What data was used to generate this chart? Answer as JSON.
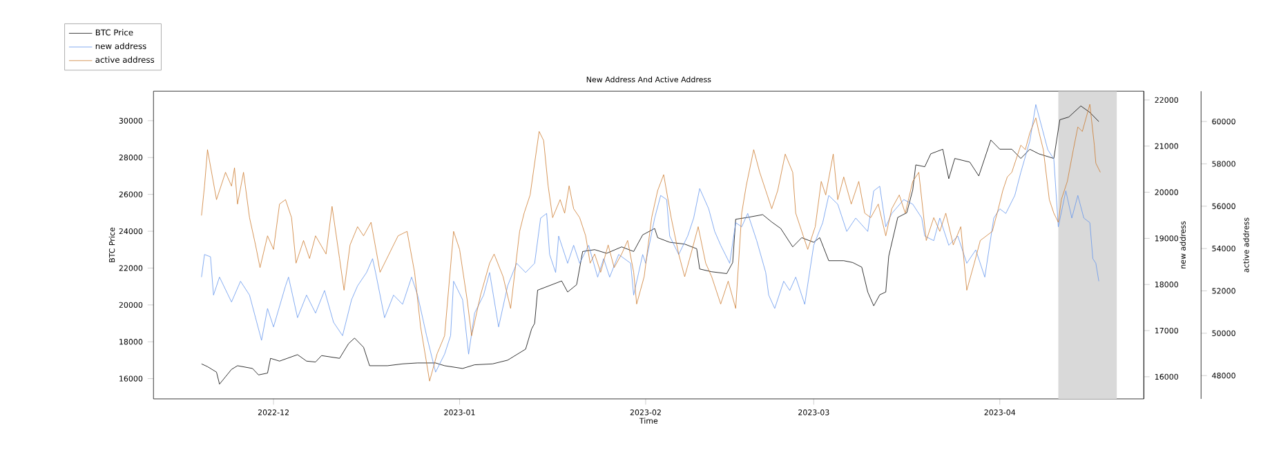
{
  "chart_data": {
    "type": "line",
    "title": "New Address And Active Address",
    "xlabel": "Time",
    "ylabel": "BTC Price",
    "y2label": "new address",
    "y3label": "active address",
    "legend": "top left",
    "xlim": [
      "2022-11-11",
      "2023-04-25"
    ],
    "xticks": [
      {
        "value": "2022-12-01",
        "label": "2022-12"
      },
      {
        "value": "2023-01-01",
        "label": "2023-01"
      },
      {
        "value": "2023-02-01",
        "label": "2023-02"
      },
      {
        "value": "2023-03-01",
        "label": "2023-03"
      },
      {
        "value": "2023-04-01",
        "label": "2023-04"
      }
    ],
    "ylim": [
      14900,
      31600
    ],
    "yticks": [
      16000,
      18000,
      20000,
      22000,
      24000,
      26000,
      28000,
      30000
    ],
    "y2lim": [
      15520,
      22190
    ],
    "y2ticks": [
      16000,
      17000,
      18000,
      19000,
      20000,
      21000,
      22000
    ],
    "y3lim": [
      46900,
      61430
    ],
    "y3ticks": [
      48000,
      50000,
      52000,
      54000,
      56000,
      58000,
      60000
    ],
    "bands": [
      {
        "axis": "x",
        "from": "2023-04-10T18:00",
        "to": "2023-04-20T12:00",
        "color": "#d9d9d9"
      }
    ],
    "series": [
      {
        "name": "BTC Price",
        "color": "#000000",
        "x": [
          "2022-11-19",
          "2022-11-20",
          "2022-11-21T12:00",
          "2022-11-22",
          "2022-11-24",
          "2022-11-25",
          "2022-11-27T12:00",
          "2022-11-28T12:00",
          "2022-11-30",
          "2022-11-30T12:00",
          "2022-12-02",
          "2022-12-05",
          "2022-12-06T12:00",
          "2022-12-08",
          "2022-12-09",
          "2022-12-12",
          "2022-12-13T12:00",
          "2022-12-14T12:00",
          "2022-12-16",
          "2022-12-17",
          "2022-12-20",
          "2022-12-22T12:00",
          "2022-12-25",
          "2022-12-28",
          "2022-12-29T12:00",
          "2023-01-01T12:00",
          "2023-01-03T12:00",
          "2023-01-06T12:00",
          "2023-01-09",
          "2023-01-10T12:00",
          "2023-01-12",
          "2023-01-13",
          "2023-01-13T12:00",
          "2023-01-14",
          "2023-01-18",
          "2023-01-19",
          "2023-01-20T12:00",
          "2023-01-21T12:00",
          "2023-01-23T12:00",
          "2023-01-25T12:00",
          "2023-01-28",
          "2023-01-30",
          "2023-01-31T12:00",
          "2023-02-02T12:00",
          "2023-02-03",
          "2023-02-05",
          "2023-02-07T12:00",
          "2023-02-09T12:00",
          "2023-02-10",
          "2023-02-12",
          "2023-02-14T12:00",
          "2023-02-15T12:00",
          "2023-02-16",
          "2023-02-18",
          "2023-02-20T12:00",
          "2023-02-22",
          "2023-02-23T12:00",
          "2023-02-25T12:00",
          "2023-02-27",
          "2023-03-01",
          "2023-03-02",
          "2023-03-03T12:00",
          "2023-03-06",
          "2023-03-07T12:00",
          "2023-03-09",
          "2023-03-10",
          "2023-03-11",
          "2023-03-12",
          "2023-03-13",
          "2023-03-13T12:00",
          "2023-03-15",
          "2023-03-16T12:00",
          "2023-03-17T12:00",
          "2023-03-18",
          "2023-03-19T12:00",
          "2023-03-20T12:00",
          "2023-03-22T12:00",
          "2023-03-23T12:00",
          "2023-03-24T12:00",
          "2023-03-27",
          "2023-03-28T12:00",
          "2023-03-30T12:00",
          "2023-04-01",
          "2023-04-03",
          "2023-04-04T12:00",
          "2023-04-06",
          "2023-04-07T12:00",
          "2023-04-10",
          "2023-04-11",
          "2023-04-12T12:00",
          "2023-04-14T12:00",
          "2023-04-16",
          "2023-04-17T12:00"
        ],
        "values": [
          16800,
          16650,
          16350,
          15700,
          16500,
          16700,
          16550,
          16200,
          16300,
          17100,
          16950,
          17300,
          16950,
          16900,
          17250,
          17100,
          17900,
          18200,
          17700,
          16700,
          16700,
          16800,
          16850,
          16850,
          16700,
          16550,
          16750,
          16800,
          17000,
          17300,
          17600,
          18700,
          19000,
          20800,
          21300,
          20700,
          21100,
          22900,
          23000,
          22800,
          23150,
          22900,
          23800,
          24150,
          23650,
          23400,
          23300,
          23050,
          21950,
          21800,
          21700,
          22300,
          24650,
          24750,
          24900,
          24500,
          24150,
          23150,
          23650,
          23400,
          23650,
          22400,
          22400,
          22300,
          22050,
          20700,
          19950,
          20550,
          20700,
          22650,
          24750,
          25000,
          26250,
          27600,
          27500,
          28200,
          28450,
          26850,
          27950,
          27750,
          27000,
          28950,
          28450,
          28450,
          27950,
          28450,
          28200,
          27950,
          30050,
          30200,
          30800,
          30450,
          29950
        ]
      },
      {
        "name": "new address",
        "color": "#6495ed",
        "axis": "y2",
        "x": [
          "2022-11-19",
          "2022-11-19T12:00",
          "2022-11-20T12:00",
          "2022-11-21",
          "2022-11-22",
          "2022-11-24",
          "2022-11-25T12:00",
          "2022-11-27",
          "2022-11-28",
          "2022-11-29",
          "2022-11-30",
          "2022-12-01",
          "2022-12-03",
          "2022-12-03T12:00",
          "2022-12-04",
          "2022-12-05",
          "2022-12-06T12:00",
          "2022-12-08",
          "2022-12-09T12:00",
          "2022-12-11",
          "2022-12-12T12:00",
          "2022-12-14",
          "2022-12-15",
          "2022-12-16T12:00",
          "2022-12-17T12:00",
          "2022-12-18",
          "2022-12-19T12:00",
          "2022-12-21",
          "2022-12-22T12:00",
          "2022-12-24",
          "2022-12-25",
          "2022-12-26T12:00",
          "2022-12-28",
          "2022-12-29T12:00",
          "2022-12-30T12:00",
          "2022-12-31",
          "2023-01-01T12:00",
          "2023-01-02T12:00",
          "2023-01-03T12:00",
          "2023-01-05",
          "2023-01-06",
          "2023-01-07T12:00",
          "2023-01-09",
          "2023-01-10T12:00",
          "2023-01-12",
          "2023-01-13T12:00",
          "2023-01-14T12:00",
          "2023-01-15T12:00",
          "2023-01-16",
          "2023-01-17",
          "2023-01-17T12:00",
          "2023-01-19",
          "2023-01-20",
          "2023-01-21",
          "2023-01-22T12:00",
          "2023-01-24",
          "2023-01-25",
          "2023-01-26",
          "2023-01-27T12:00",
          "2023-01-29T12:00",
          "2023-01-30",
          "2023-01-31T12:00",
          "2023-02-01",
          "2023-02-02T12:00",
          "2023-02-03T12:00",
          "2023-02-04T12:00",
          "2023-02-05",
          "2023-02-06T12:00",
          "2023-02-08",
          "2023-02-09",
          "2023-02-10",
          "2023-02-11T12:00",
          "2023-02-12T12:00",
          "2023-02-13T12:00",
          "2023-02-15",
          "2023-02-16",
          "2023-02-17",
          "2023-02-18",
          "2023-02-19T12:00",
          "2023-02-21",
          "2023-02-21T12:00",
          "2023-02-22T12:00",
          "2023-02-24",
          "2023-02-25",
          "2023-02-26",
          "2023-02-27T12:00",
          "2023-03-01",
          "2023-03-02T12:00",
          "2023-03-03T12:00",
          "2023-03-05",
          "2023-03-06T12:00",
          "2023-03-08",
          "2023-03-10",
          "2023-03-11",
          "2023-03-12",
          "2023-03-13",
          "2023-03-14",
          "2023-03-16",
          "2023-03-17T12:00",
          "2023-03-19",
          "2023-03-19T12:00",
          "2023-03-21",
          "2023-03-22",
          "2023-03-23T12:00",
          "2023-03-25",
          "2023-03-26T12:00",
          "2023-03-28",
          "2023-03-29T12:00",
          "2023-03-31",
          "2023-04-01",
          "2023-04-02",
          "2023-04-03T12:00",
          "2023-04-04T12:00",
          "2023-04-06",
          "2023-04-07",
          "2023-04-08",
          "2023-04-09",
          "2023-04-10",
          "2023-04-10T18:00",
          "2023-04-12",
          "2023-04-13",
          "2023-04-14",
          "2023-04-15",
          "2023-04-16",
          "2023-04-16T12:00",
          "2023-04-17",
          "2023-04-17T12:00"
        ],
        "values": [
          18160,
          18650,
          18600,
          17770,
          18160,
          17620,
          18070,
          17770,
          17280,
          16790,
          17480,
          17080,
          17970,
          18160,
          17870,
          17280,
          17770,
          17380,
          17870,
          17180,
          16890,
          17670,
          17970,
          18260,
          18560,
          18260,
          17280,
          17770,
          17570,
          18160,
          17770,
          16890,
          16100,
          16490,
          16890,
          18070,
          17670,
          16490,
          17380,
          17770,
          18260,
          17080,
          17970,
          18460,
          18260,
          18460,
          19440,
          19540,
          18650,
          18260,
          19050,
          18460,
          18850,
          18460,
          18850,
          18160,
          18560,
          18160,
          18650,
          18460,
          17770,
          18650,
          18460,
          19440,
          19930,
          19840,
          19050,
          18650,
          19050,
          19440,
          20080,
          19640,
          19150,
          18850,
          18460,
          19340,
          19250,
          19540,
          18950,
          18260,
          17770,
          17480,
          18070,
          17870,
          18160,
          17570,
          18850,
          19340,
          19930,
          19740,
          19150,
          19440,
          19150,
          20030,
          20130,
          19250,
          19540,
          19840,
          19740,
          19440,
          19050,
          18950,
          19440,
          18850,
          19050,
          18460,
          18750,
          18160,
          19440,
          19640,
          19540,
          19930,
          20430,
          21110,
          21900,
          21410,
          20920,
          20720,
          19250,
          20030,
          19440,
          19930,
          19440,
          19340,
          18560,
          18460,
          18070
        ]
      },
      {
        "name": "active address",
        "color": "#cc7a2e",
        "axis": "y3",
        "x": [
          "2022-11-19",
          "2022-11-19T12:00",
          "2022-11-20",
          "2022-11-21T12:00",
          "2022-11-23",
          "2022-11-24",
          "2022-11-24T12:00",
          "2022-11-25",
          "2022-11-26",
          "2022-11-27",
          "2022-11-28",
          "2022-11-28T18:00",
          "2022-11-30",
          "2022-12-01",
          "2022-12-02",
          "2022-12-03",
          "2022-12-04",
          "2022-12-04T18:00",
          "2022-12-06",
          "2022-12-07",
          "2022-12-08",
          "2022-12-09T18:00",
          "2022-12-10T18:00",
          "2022-12-12",
          "2022-12-12T18:00",
          "2022-12-13T18:00",
          "2022-12-15",
          "2022-12-16",
          "2022-12-17T06:00",
          "2022-12-18T18:00",
          "2022-12-20T06:00",
          "2022-12-21T18:00",
          "2022-12-23T06:00",
          "2022-12-24T12:00",
          "2022-12-25T12:00",
          "2022-12-27",
          "2022-12-28T06:00",
          "2022-12-29T12:00",
          "2022-12-31",
          "2023-01-01",
          "2023-01-02T06:00",
          "2023-01-03",
          "2023-01-04T12:00",
          "2023-01-06",
          "2023-01-06T18:00",
          "2023-01-08T06:00",
          "2023-01-09T12:00",
          "2023-01-11",
          "2023-01-11T18:00",
          "2023-01-12T18:00",
          "2023-01-14T06:00",
          "2023-01-15",
          "2023-01-15T18:00",
          "2023-01-16T12:00",
          "2023-01-17T18:00",
          "2023-01-18T12:00",
          "2023-01-19T06:00",
          "2023-01-20",
          "2023-01-21",
          "2023-01-22",
          "2023-01-22T18:00",
          "2023-01-23T12:00",
          "2023-01-24T12:00",
          "2023-01-25T18:00",
          "2023-01-26T18:00",
          "2023-01-28",
          "2023-01-29",
          "2023-01-30",
          "2023-01-30T12:00",
          "2023-01-31T18:00",
          "2023-02-02",
          "2023-02-03",
          "2023-02-04",
          "2023-02-05T06:00",
          "2023-02-06T12:00",
          "2023-02-07T12:00",
          "2023-02-08T18:00",
          "2023-02-09T18:00",
          "2023-02-11",
          "2023-02-12",
          "2023-02-13T12:00",
          "2023-02-14T18:00",
          "2023-02-16",
          "2023-02-17",
          "2023-02-17T18:00",
          "2023-02-19",
          "2023-02-20",
          "2023-02-21T06:00",
          "2023-02-22",
          "2023-02-23",
          "2023-02-24T06:00",
          "2023-02-25T12:00",
          "2023-02-26",
          "2023-02-27T06:00",
          "2023-02-28",
          "2023-03-01T06:00",
          "2023-03-02T06:00",
          "2023-03-03",
          "2023-03-04T06:00",
          "2023-03-05",
          "2023-03-06",
          "2023-03-07T06:00",
          "2023-03-08T12:00",
          "2023-03-09T12:00",
          "2023-03-10T12:00",
          "2023-03-11T18:00",
          "2023-03-13",
          "2023-03-14",
          "2023-03-15T06:00",
          "2023-03-16T06:00",
          "2023-03-17T12:00",
          "2023-03-18T12:00",
          "2023-03-19T18:00",
          "2023-03-21",
          "2023-03-22",
          "2023-03-23",
          "2023-03-24T06:00",
          "2023-03-25T12:00",
          "2023-03-26T12:00",
          "2023-03-27T18:00",
          "2023-03-28T18:00",
          "2023-03-30T18:00",
          "2023-03-31T18:00",
          "2023-04-01T12:00",
          "2023-04-02T06:00",
          "2023-04-03",
          "2023-04-03T18:00",
          "2023-04-04T12:00",
          "2023-04-05T06:00",
          "2023-04-06",
          "2023-04-07",
          "2023-04-07T12:00",
          "2023-04-08T06:00",
          "2023-04-09T06:00",
          "2023-04-10",
          "2023-04-10T18:00",
          "2023-04-11T06:00",
          "2023-04-12T06:00",
          "2023-04-13T06:00",
          "2023-04-14",
          "2023-04-14T18:00",
          "2023-04-16",
          "2023-04-16T18:00",
          "2023-04-17",
          "2023-04-17T18:00"
        ],
        "values": [
          55560,
          56950,
          58670,
          56310,
          57600,
          56950,
          57810,
          56100,
          57600,
          55460,
          54170,
          53100,
          54600,
          53960,
          56100,
          56310,
          55460,
          53310,
          54380,
          53530,
          54600,
          53740,
          55990,
          53530,
          52030,
          54170,
          55030,
          54600,
          55240,
          52880,
          53740,
          54600,
          54810,
          52880,
          50310,
          47740,
          49030,
          49880,
          54810,
          53960,
          51600,
          49880,
          51810,
          53310,
          53740,
          52670,
          51170,
          54810,
          55670,
          56530,
          59530,
          59100,
          56960,
          55460,
          56310,
          55670,
          56960,
          55880,
          55460,
          54600,
          53310,
          53740,
          52880,
          54170,
          53100,
          53740,
          54380,
          52880,
          51380,
          52670,
          55460,
          56740,
          57490,
          55460,
          53740,
          52670,
          53960,
          55030,
          53310,
          52670,
          51380,
          52460,
          51170,
          55670,
          56960,
          58670,
          57600,
          56530,
          55880,
          56740,
          58460,
          57600,
          55670,
          54600,
          53960,
          55030,
          57170,
          56530,
          58460,
          56310,
          57380,
          56100,
          57170,
          55670,
          55460,
          56100,
          54600,
          55880,
          56530,
          55670,
          57170,
          57600,
          54380,
          55460,
          54810,
          55670,
          54170,
          55030,
          52030,
          53310,
          54380,
          54810,
          55880,
          56740,
          57380,
          57600,
          58240,
          58880,
          58670,
          59460,
          60170,
          59530,
          58670,
          56310,
          55670,
          55240,
          56310,
          57170,
          58670,
          59740,
          59530,
          60810,
          58880,
          58030,
          57600
        ]
      }
    ]
  }
}
